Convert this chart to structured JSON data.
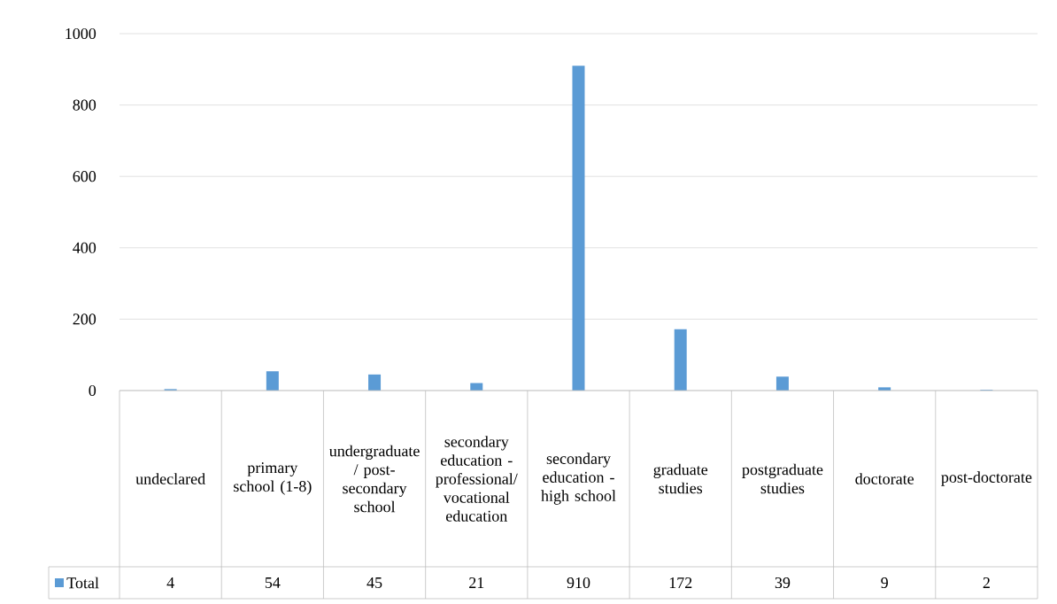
{
  "chart_data": {
    "type": "bar",
    "categories": [
      "undeclared",
      "primary school (1-8)",
      "undergraduate / post-secondary school",
      "secondary education - professional/vocational education",
      "secondary education - high school",
      "graduate studies",
      "postgraduate studies",
      "doctorate",
      "post-doctorate"
    ],
    "series": [
      {
        "name": "Total",
        "color": "#5b9bd5",
        "values": [
          4,
          54,
          45,
          21,
          910,
          172,
          39,
          9,
          2
        ]
      }
    ],
    "ylim": [
      0,
      1000
    ],
    "yticks": [
      0,
      200,
      400,
      600,
      800,
      1000
    ],
    "grid": "y",
    "data_labels": true
  }
}
